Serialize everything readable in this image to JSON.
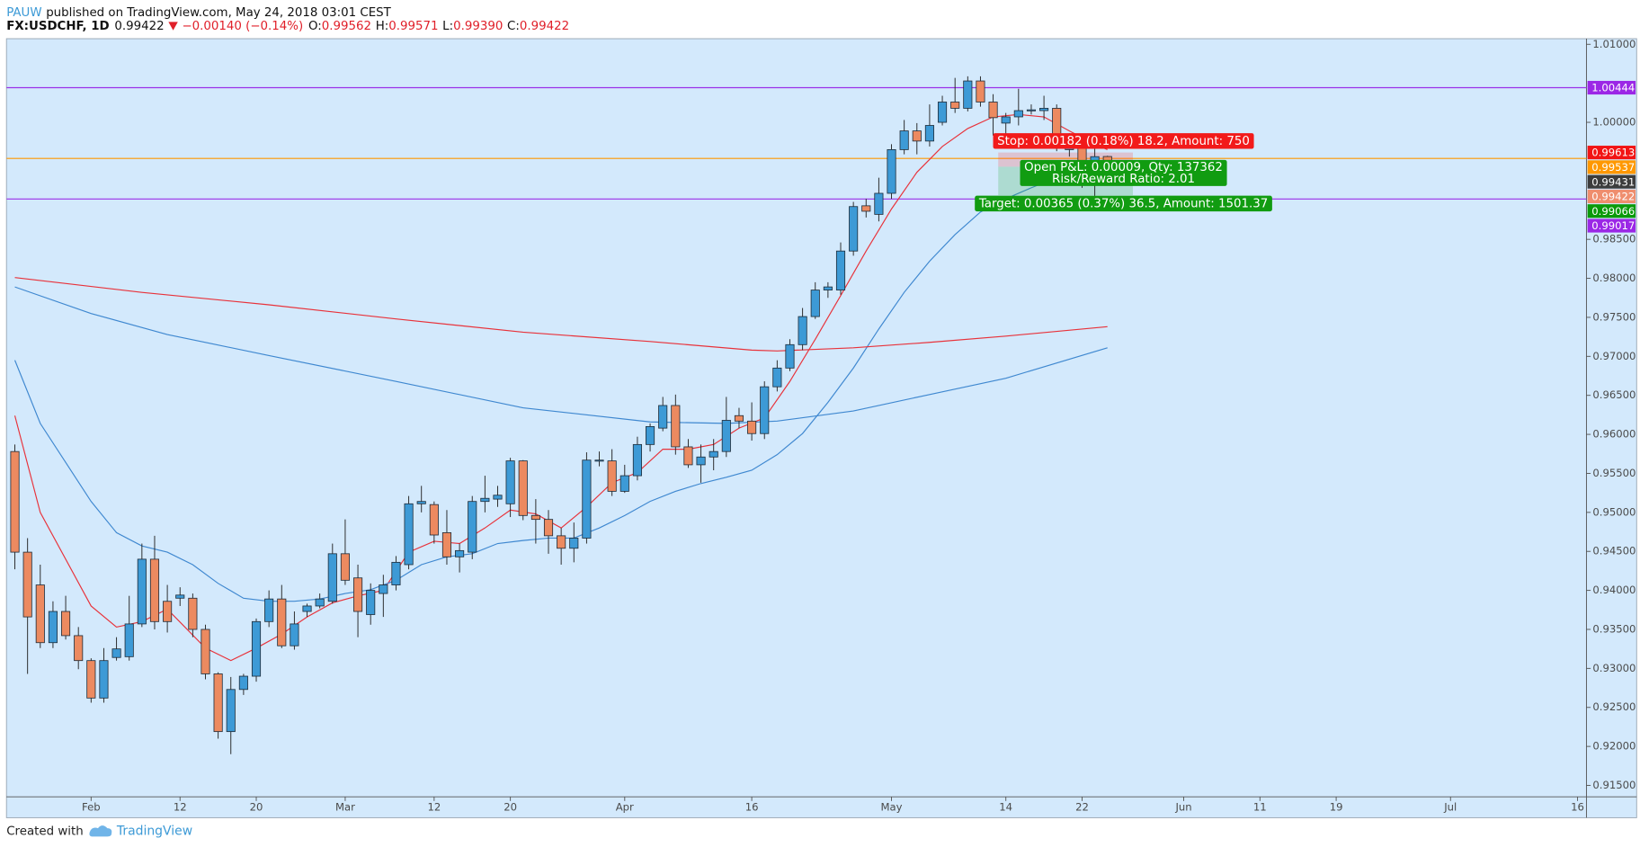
{
  "header": {
    "author": "PAUW",
    "published": "published on TradingView.com, May 24, 2018 03:01 CEST",
    "symbol": "FX:USDCHF, 1D",
    "last": "0.99422",
    "change": "−0.00140 (−0.14%)",
    "ohlc": [
      {
        "label": "O:",
        "value": "0.99562"
      },
      {
        "label": "H:",
        "value": "0.99571"
      },
      {
        "label": "L:",
        "value": "0.99390"
      },
      {
        "label": "C:",
        "value": "0.99422"
      }
    ]
  },
  "chart_data": {
    "type": "candlestick",
    "up_color": "#3d9ad6",
    "down_color": "#ec8a60",
    "background": "#d3e9fc",
    "grid": false,
    "x": [
      0,
      1,
      2,
      3,
      4,
      5,
      6,
      7,
      8,
      9,
      10,
      11,
      12,
      13,
      14,
      15,
      16,
      17,
      18,
      19,
      20,
      21,
      22,
      23,
      24,
      25,
      26,
      27,
      28,
      29,
      30,
      31,
      32,
      33,
      34,
      35,
      36,
      37,
      38,
      39,
      40,
      41,
      42,
      43,
      44,
      45,
      46,
      47,
      48,
      49,
      50,
      51,
      52,
      53,
      54,
      55,
      56,
      57,
      58,
      59,
      60,
      61,
      62,
      63,
      64,
      65,
      66,
      67,
      68,
      69,
      70,
      71,
      72,
      73,
      74,
      75,
      76,
      77,
      78,
      79,
      80,
      81,
      82,
      83,
      84,
      85,
      86
    ],
    "open": [
      0.9578,
      0.9449,
      0.9407,
      0.9333,
      0.9373,
      0.9342,
      0.931,
      0.9262,
      0.9314,
      0.9315,
      0.9357,
      0.944,
      0.9386,
      0.939,
      0.939,
      0.935,
      0.9293,
      0.9219,
      0.9273,
      0.929,
      0.936,
      0.9389,
      0.9329,
      0.9373,
      0.938,
      0.9386,
      0.9447,
      0.9416,
      0.9369,
      0.9396,
      0.9407,
      0.9433,
      0.9511,
      0.951,
      0.9474,
      0.9443,
      0.9449,
      0.9514,
      0.9517,
      0.9511,
      0.9566,
      0.9496,
      0.9491,
      0.947,
      0.9454,
      0.9467,
      0.9566,
      0.9566,
      0.9527,
      0.9547,
      0.9587,
      0.9608,
      0.9637,
      0.9584,
      0.9561,
      0.9571,
      0.9578,
      0.9624,
      0.9617,
      0.9601,
      0.9661,
      0.9685,
      0.9715,
      0.9751,
      0.9785,
      0.9785,
      0.9835,
      0.9893,
      0.9882,
      0.9909,
      0.9965,
      0.9989,
      0.9976,
      1.0,
      1.0026,
      1.0018,
      1.0053,
      1.0026,
      0.9999,
      1.0007,
      1.0015,
      1.0015,
      1.0018,
      0.9965,
      0.9972,
      0.9926,
      0.99562
    ],
    "high": [
      0.9587,
      0.9467,
      0.9433,
      0.9386,
      0.9393,
      0.9353,
      0.9313,
      0.9326,
      0.934,
      0.9393,
      0.946,
      0.947,
      0.9407,
      0.9404,
      0.9396,
      0.9356,
      0.9295,
      0.9289,
      0.9293,
      0.9364,
      0.94,
      0.9407,
      0.9373,
      0.9383,
      0.9396,
      0.946,
      0.9491,
      0.9433,
      0.9409,
      0.942,
      0.9444,
      0.9521,
      0.9534,
      0.9514,
      0.9503,
      0.946,
      0.9521,
      0.9547,
      0.9534,
      0.957,
      0.9567,
      0.9517,
      0.9503,
      0.948,
      0.9487,
      0.9577,
      0.9578,
      0.9581,
      0.9561,
      0.9597,
      0.9614,
      0.9648,
      0.9651,
      0.9594,
      0.9587,
      0.9594,
      0.9648,
      0.9634,
      0.9641,
      0.9668,
      0.9695,
      0.9722,
      0.9762,
      0.9795,
      0.9795,
      0.9846,
      0.9898,
      0.9902,
      0.9929,
      0.9972,
      1.0003,
      0.9999,
      1.0023,
      1.0034,
      1.0057,
      1.0059,
      1.0059,
      1.0036,
      1.0012,
      1.0043,
      1.0023,
      1.0034,
      1.0023,
      0.9986,
      0.9983,
      0.9973,
      0.99571
    ],
    "low": [
      0.9427,
      0.9293,
      0.9326,
      0.9326,
      0.9337,
      0.9299,
      0.9256,
      0.9256,
      0.931,
      0.931,
      0.9353,
      0.935,
      0.9346,
      0.938,
      0.934,
      0.9286,
      0.921,
      0.919,
      0.9266,
      0.9283,
      0.9353,
      0.9326,
      0.9324,
      0.9366,
      0.9377,
      0.9383,
      0.9407,
      0.934,
      0.9356,
      0.9366,
      0.94,
      0.9427,
      0.95,
      0.946,
      0.9433,
      0.9423,
      0.944,
      0.95,
      0.9507,
      0.9494,
      0.949,
      0.946,
      0.9447,
      0.9433,
      0.9436,
      0.946,
      0.9559,
      0.9521,
      0.9525,
      0.9541,
      0.9578,
      0.9604,
      0.9574,
      0.9557,
      0.9538,
      0.9554,
      0.9571,
      0.9608,
      0.9592,
      0.9594,
      0.9655,
      0.9681,
      0.9708,
      0.9748,
      0.9775,
      0.9779,
      0.9829,
      0.9878,
      0.9873,
      0.9902,
      0.9959,
      0.9959,
      0.9969,
      0.9996,
      1.0012,
      1.0014,
      1.002,
      0.9983,
      0.9983,
      0.9996,
      1.001,
      1.0003,
      0.9963,
      0.9956,
      0.9916,
      0.9902,
      0.9939
    ],
    "close": [
      0.9449,
      0.9366,
      0.9333,
      0.9373,
      0.9342,
      0.931,
      0.9262,
      0.931,
      0.9325,
      0.9357,
      0.944,
      0.936,
      0.936,
      0.9394,
      0.935,
      0.9293,
      0.9219,
      0.9273,
      0.929,
      0.936,
      0.9389,
      0.9329,
      0.9357,
      0.938,
      0.9389,
      0.9447,
      0.9413,
      0.9373,
      0.94,
      0.9407,
      0.9436,
      0.9511,
      0.9514,
      0.9471,
      0.9443,
      0.9451,
      0.9514,
      0.9518,
      0.9522,
      0.9566,
      0.9496,
      0.9491,
      0.947,
      0.9454,
      0.9467,
      0.9567,
      0.9567,
      0.9527,
      0.9547,
      0.9587,
      0.961,
      0.9637,
      0.9584,
      0.9561,
      0.9571,
      0.9578,
      0.9618,
      0.9617,
      0.9601,
      0.9661,
      0.9685,
      0.9715,
      0.9751,
      0.9785,
      0.9789,
      0.9835,
      0.9892,
      0.9886,
      0.9909,
      0.9965,
      0.9989,
      0.9976,
      0.9996,
      1.0026,
      1.0018,
      1.0053,
      1.0026,
      1.0006,
      1.0007,
      1.0015,
      1.0016,
      1.0018,
      0.9973,
      0.9972,
      0.9926,
      0.9956,
      0.99422
    ],
    "overlays": [
      {
        "color": "#e8323a",
        "x": [
          0,
          2,
          6,
          8,
          10,
          12,
          15,
          17,
          19,
          21,
          23,
          25,
          27,
          29,
          31,
          33,
          35,
          37,
          39,
          41,
          43,
          45,
          47,
          49,
          51,
          53,
          55,
          57,
          59,
          61,
          63,
          65,
          67,
          69,
          71,
          73,
          75,
          77,
          79,
          81,
          83,
          85,
          86
        ],
        "values": [
          0.9624,
          0.95,
          0.938,
          0.9353,
          0.936,
          0.9376,
          0.9326,
          0.931,
          0.9326,
          0.9344,
          0.9366,
          0.9384,
          0.9393,
          0.94,
          0.9449,
          0.9463,
          0.946,
          0.948,
          0.9503,
          0.9498,
          0.948,
          0.9507,
          0.9538,
          0.9551,
          0.9581,
          0.9581,
          0.9587,
          0.9608,
          0.9621,
          0.9668,
          0.9722,
          0.9778,
          0.9835,
          0.9889,
          0.9936,
          0.9969,
          0.9992,
          1.0007,
          1.001,
          1.0007,
          0.9989,
          0.9972,
          0.9965
        ]
      },
      {
        "color": "#3f88d0",
        "x": [
          0,
          2,
          6,
          8,
          10,
          12,
          14,
          16,
          18,
          20,
          22,
          24,
          26,
          28,
          30,
          32,
          34,
          36,
          38,
          40,
          42,
          44,
          46,
          48,
          50,
          52,
          54,
          56,
          58,
          60,
          62,
          64,
          66,
          68,
          70,
          72,
          74,
          76,
          78,
          80,
          82,
          84,
          86
        ],
        "values": [
          0.9695,
          0.9614,
          0.9514,
          0.9474,
          0.9457,
          0.9449,
          0.9433,
          0.9409,
          0.939,
          0.9386,
          0.9386,
          0.9389,
          0.9396,
          0.9401,
          0.9413,
          0.9433,
          0.9443,
          0.9447,
          0.946,
          0.9464,
          0.9467,
          0.9467,
          0.948,
          0.9496,
          0.9514,
          0.9527,
          0.9537,
          0.9545,
          0.9554,
          0.9574,
          0.9601,
          0.9641,
          0.9685,
          0.9735,
          0.9782,
          0.9822,
          0.9856,
          0.9885,
          0.9902,
          0.9916,
          0.9929,
          0.9936,
          0.9943
        ]
      },
      {
        "color": "#e8323a",
        "x": [
          0,
          10,
          20,
          30,
          40,
          50,
          58,
          60,
          66,
          72,
          78,
          86
        ],
        "values": [
          0.9801,
          0.9782,
          0.9766,
          0.9748,
          0.9731,
          0.9719,
          0.9708,
          0.9707,
          0.9711,
          0.9718,
          0.9726,
          0.9738
        ]
      },
      {
        "color": "#3f88d0",
        "x": [
          0,
          6,
          12,
          20,
          30,
          40,
          50,
          56,
          60,
          66,
          72,
          78,
          86
        ],
        "values": [
          0.9789,
          0.9755,
          0.9728,
          0.9701,
          0.9668,
          0.9634,
          0.9616,
          0.9614,
          0.9617,
          0.963,
          0.9651,
          0.9672,
          0.9711
        ]
      }
    ],
    "hlines": [
      {
        "value": 1.00444,
        "color": "#9b30e8"
      },
      {
        "value": 0.99537,
        "color": "#ff9800"
      },
      {
        "value": 0.99017,
        "color": "#9b30e8"
      }
    ],
    "position": {
      "x": [
        77.4,
        88
      ],
      "entry": 0.99431,
      "stop": 0.99613,
      "target": 0.99066,
      "stop_label": "Stop: 0.00182 (0.18%) 18.2, Amount: 750",
      "pnl_label": "Open P&L: 0.00009, Qty: 137362",
      "ratio_label": "Risk/Reward Ratio: 2.01",
      "target_label": "Target: 0.00365 (0.37%) 36.5, Amount: 1501.37"
    },
    "price_labels": [
      {
        "value": 1.00444,
        "color": "#9b27e6"
      },
      {
        "value": 0.99613,
        "color": "#f21414"
      },
      {
        "value": 0.99537,
        "color": "#ff9800"
      },
      {
        "value": 0.99431,
        "color": "#3c3c3c"
      },
      {
        "value": 0.99422,
        "color": "#ef8e6e"
      },
      {
        "value": 0.99066,
        "color": "#0a9a0a"
      },
      {
        "value": 0.99017,
        "color": "#9b27e6"
      }
    ],
    "xlim": [
      -0.66,
      123.7
    ],
    "xticks": [
      {
        "value": 6,
        "label": "Feb"
      },
      {
        "value": 13,
        "label": "12"
      },
      {
        "value": 19,
        "label": "20"
      },
      {
        "value": 26,
        "label": "Mar"
      },
      {
        "value": 33,
        "label": "12"
      },
      {
        "value": 39,
        "label": "20"
      },
      {
        "value": 48,
        "label": "Apr"
      },
      {
        "value": 58,
        "label": "16"
      },
      {
        "value": 69,
        "label": "May"
      },
      {
        "value": 78,
        "label": "14"
      },
      {
        "value": 84,
        "label": "22"
      },
      {
        "value": 92,
        "label": "Jun"
      },
      {
        "value": 98,
        "label": "11"
      },
      {
        "value": 104,
        "label": "19"
      },
      {
        "value": 113,
        "label": "Jul"
      },
      {
        "value": 123,
        "label": "16"
      }
    ],
    "ylim": [
      0.91354,
      1.01072
    ],
    "yticks": [
      {
        "value": 1.01,
        "label": "1.01000"
      },
      {
        "value": 1.0,
        "label": "1.00000"
      },
      {
        "value": 0.985,
        "label": "0.98500"
      },
      {
        "value": 0.98,
        "label": "0.98000"
      },
      {
        "value": 0.975,
        "label": "0.97500"
      },
      {
        "value": 0.97,
        "label": "0.97000"
      },
      {
        "value": 0.965,
        "label": "0.96500"
      },
      {
        "value": 0.96,
        "label": "0.96000"
      },
      {
        "value": 0.955,
        "label": "0.95500"
      },
      {
        "value": 0.95,
        "label": "0.95000"
      },
      {
        "value": 0.945,
        "label": "0.94500"
      },
      {
        "value": 0.94,
        "label": "0.94000"
      },
      {
        "value": 0.935,
        "label": "0.93500"
      },
      {
        "value": 0.93,
        "label": "0.93000"
      },
      {
        "value": 0.925,
        "label": "0.92500"
      },
      {
        "value": 0.92,
        "label": "0.92000"
      },
      {
        "value": 0.915,
        "label": "0.91500"
      }
    ]
  },
  "footer": {
    "created": "Created with",
    "brand": "TradingView"
  }
}
